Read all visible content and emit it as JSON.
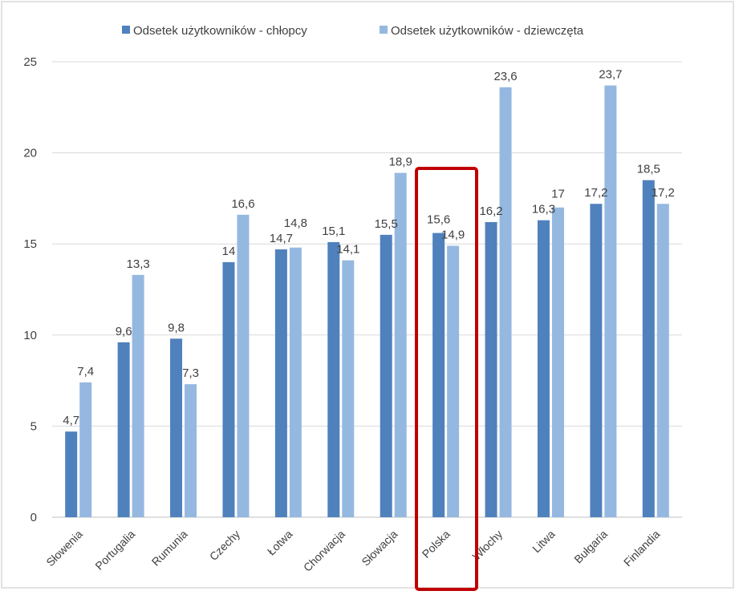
{
  "chart_data": {
    "type": "bar",
    "title": "",
    "xlabel": "",
    "ylabel": "",
    "ylim": [
      0,
      25
    ],
    "yticks": [
      0,
      5,
      10,
      15,
      20,
      25
    ],
    "grid": true,
    "legend_position": "top",
    "categories": [
      "Słowenia",
      "Portugalia",
      "Rumunia",
      "Czechy",
      "Łotwa",
      "Chorwacja",
      "Słowacja",
      "Polska",
      "Włochy",
      "Litwa",
      "Bułgaria",
      "Finlandia"
    ],
    "series": [
      {
        "name": "Odsetek użytkowników -  chłopcy",
        "color": "#4f81bd",
        "values": [
          4.7,
          9.6,
          9.8,
          14,
          14.7,
          15.1,
          15.5,
          15.6,
          16.2,
          16.3,
          17.2,
          18.5
        ],
        "labels": [
          "4,7",
          "9,6",
          "9,8",
          "14",
          "14,7",
          "15,1",
          "15,5",
          "15,6",
          "16,2",
          "16,3",
          "17,2",
          "18,5"
        ]
      },
      {
        "name": "Odsetek użytkowników -  dziewczęta",
        "color": "#95b8e0",
        "values": [
          7.4,
          13.3,
          7.3,
          16.6,
          14.8,
          14.1,
          18.9,
          14.9,
          23.6,
          17,
          23.7,
          17.2
        ],
        "labels": [
          "7,4",
          "13,3",
          "7,3",
          "16,6",
          "14,8",
          "14,1",
          "18,9",
          "14,9",
          "23,6",
          "17",
          "23,7",
          "17,2"
        ]
      }
    ],
    "highlight": {
      "category": "Polska",
      "color": "#c00000"
    }
  }
}
